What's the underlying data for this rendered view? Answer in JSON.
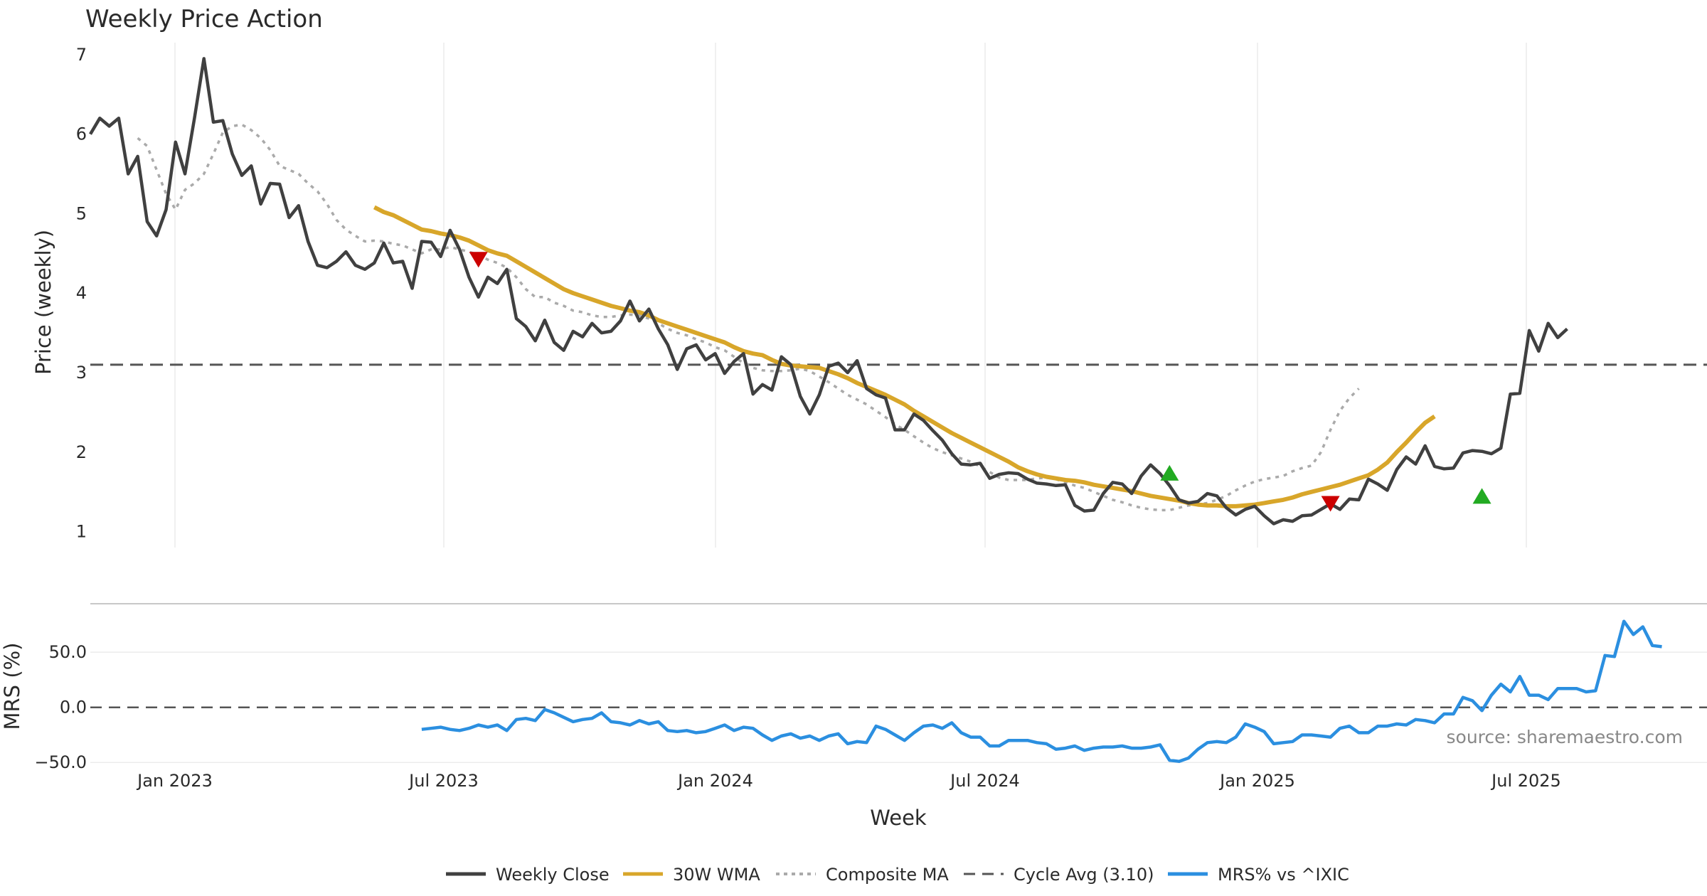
{
  "chart_data": {
    "type": "line",
    "title": "Weekly Price Action",
    "xlabel": "Week",
    "ylabel": "Price (weekly)",
    "ylim": [
      0.8,
      7.15
    ],
    "yticks": [
      "1",
      "2",
      "3",
      "4",
      "5",
      "6",
      "7"
    ],
    "xticks": [
      "Jan 2023",
      "Jul 2023",
      "Jan 2024",
      "Jul 2024",
      "Jan 2025",
      "Jul 2025"
    ],
    "cycle_avg": 3.1,
    "series": [
      {
        "name": "Weekly Close",
        "color": "#404040",
        "values": [
          6.0,
          6.2,
          6.1,
          6.2,
          5.5,
          5.72,
          4.9,
          4.72,
          5.05,
          5.9,
          5.5,
          6.2,
          6.95,
          6.15,
          6.17,
          5.75,
          5.48,
          5.6,
          5.12,
          5.38,
          5.37,
          4.95,
          5.1,
          4.65,
          4.35,
          4.32,
          4.4,
          4.52,
          4.35,
          4.3,
          4.38,
          4.63,
          4.38,
          4.4,
          4.06,
          4.65,
          4.64,
          4.46,
          4.79,
          4.55,
          4.2,
          3.95,
          4.2,
          4.12,
          4.3,
          3.68,
          3.58,
          3.4,
          3.66,
          3.38,
          3.28,
          3.52,
          3.45,
          3.62,
          3.5,
          3.52,
          3.65,
          3.9,
          3.65,
          3.8,
          3.55,
          3.35,
          3.04,
          3.3,
          3.35,
          3.16,
          3.24,
          2.99,
          3.14,
          3.24,
          2.73,
          2.85,
          2.78,
          3.2,
          3.1,
          2.7,
          2.48,
          2.72,
          3.08,
          3.12,
          3.0,
          3.15,
          2.8,
          2.72,
          2.68,
          2.28,
          2.28,
          2.48,
          2.4,
          2.27,
          2.15,
          1.98,
          1.85,
          1.84,
          1.86,
          1.67,
          1.72,
          1.74,
          1.73,
          1.66,
          1.61,
          1.6,
          1.58,
          1.59,
          1.33,
          1.26,
          1.27,
          1.48,
          1.62,
          1.6,
          1.48,
          1.7,
          1.84,
          1.73,
          1.58,
          1.4,
          1.36,
          1.38,
          1.48,
          1.45,
          1.3,
          1.21,
          1.28,
          1.32,
          1.2,
          1.1,
          1.15,
          1.13,
          1.2,
          1.21,
          1.28,
          1.35,
          1.28,
          1.41,
          1.4,
          1.66,
          1.6,
          1.52,
          1.78,
          1.94,
          1.85,
          2.08,
          1.82,
          1.79,
          1.8,
          1.99,
          2.02,
          2.01,
          1.98,
          2.05,
          2.73,
          2.74,
          3.53,
          3.27,
          3.62,
          3.44,
          3.55
        ]
      },
      {
        "name": "30W WMA",
        "color": "#d8a62a",
        "start_index": 30,
        "values": [
          5.08,
          5.02,
          4.98,
          4.92,
          4.86,
          4.8,
          4.78,
          4.75,
          4.73,
          4.7,
          4.66,
          4.6,
          4.54,
          4.5,
          4.47,
          4.4,
          4.33,
          4.26,
          4.19,
          4.12,
          4.05,
          4.0,
          3.96,
          3.92,
          3.88,
          3.84,
          3.81,
          3.78,
          3.76,
          3.72,
          3.66,
          3.62,
          3.58,
          3.54,
          3.5,
          3.46,
          3.42,
          3.38,
          3.32,
          3.27,
          3.24,
          3.22,
          3.16,
          3.11,
          3.09,
          3.08,
          3.07,
          3.06,
          3.02,
          2.98,
          2.93,
          2.87,
          2.82,
          2.77,
          2.72,
          2.66,
          2.6,
          2.52,
          2.45,
          2.38,
          2.31,
          2.24,
          2.18,
          2.12,
          2.06,
          2.0,
          1.94,
          1.88,
          1.81,
          1.76,
          1.72,
          1.69,
          1.67,
          1.65,
          1.64,
          1.62,
          1.59,
          1.57,
          1.55,
          1.53,
          1.51,
          1.48,
          1.45,
          1.43,
          1.41,
          1.39,
          1.36,
          1.34,
          1.33,
          1.33,
          1.32,
          1.32,
          1.33,
          1.34,
          1.36,
          1.38,
          1.4,
          1.43,
          1.47,
          1.5,
          1.53,
          1.56,
          1.59,
          1.63,
          1.67,
          1.71,
          1.78,
          1.87,
          2.0,
          2.12,
          2.25,
          2.37,
          2.45
        ]
      },
      {
        "name": "Composite MA",
        "color": "#aaaaaa",
        "start_index": 5,
        "values": [
          5.95,
          5.85,
          5.55,
          5.25,
          5.05,
          5.3,
          5.38,
          5.5,
          5.75,
          6.02,
          6.1,
          6.12,
          6.05,
          5.95,
          5.8,
          5.6,
          5.55,
          5.5,
          5.38,
          5.28,
          5.12,
          4.92,
          4.8,
          4.72,
          4.65,
          4.66,
          4.65,
          4.62,
          4.6,
          4.55,
          4.5,
          4.55,
          4.55,
          4.58,
          4.55,
          4.52,
          4.48,
          4.42,
          4.38,
          4.32,
          4.2,
          4.05,
          3.95,
          3.95,
          3.88,
          3.84,
          3.78,
          3.76,
          3.72,
          3.7,
          3.7,
          3.72,
          3.73,
          3.72,
          3.68,
          3.62,
          3.55,
          3.5,
          3.47,
          3.42,
          3.38,
          3.32,
          3.28,
          3.2,
          3.12,
          3.06,
          3.03,
          3.02,
          3.02,
          3.03,
          3.05,
          3.02,
          2.95,
          2.88,
          2.8,
          2.72,
          2.66,
          2.6,
          2.52,
          2.44,
          2.35,
          2.28,
          2.2,
          2.12,
          2.05,
          2.0,
          1.96,
          1.92,
          1.88,
          1.82,
          1.75,
          1.68,
          1.65,
          1.65,
          1.65,
          1.67,
          1.68,
          1.66,
          1.62,
          1.58,
          1.55,
          1.5,
          1.45,
          1.4,
          1.37,
          1.33,
          1.3,
          1.28,
          1.27,
          1.27,
          1.3,
          1.33,
          1.34,
          1.36,
          1.4,
          1.45,
          1.52,
          1.58,
          1.63,
          1.66,
          1.68,
          1.7,
          1.76,
          1.8,
          1.83,
          2.0,
          2.28,
          2.52,
          2.68,
          2.8
        ]
      }
    ],
    "markers": [
      {
        "type": "sell",
        "index": 41,
        "value": 4.42,
        "color": "#cc0000"
      },
      {
        "type": "buy",
        "index": 114,
        "value": 1.74,
        "color": "#22aa22"
      },
      {
        "type": "sell",
        "index": 131,
        "value": 1.35,
        "color": "#cc0000"
      },
      {
        "type": "buy",
        "index": 147,
        "value": 1.45,
        "color": "#22aa22"
      }
    ],
    "lower": {
      "ylabel": "MRS (%)",
      "ylim": [
        -55,
        92
      ],
      "yticks": [
        "50.0",
        "0.0",
        "−50.0"
      ],
      "series": {
        "name": "MRS% vs ^IXIC",
        "color": "#2b8fe0",
        "start_index": 35,
        "values": [
          -20,
          -19,
          -18,
          -20,
          -21,
          -19,
          -16,
          -18,
          -16,
          -21,
          -11,
          -10,
          -12,
          -2,
          -5,
          -9,
          -13,
          -11,
          -10,
          -5,
          -13,
          -14,
          -16,
          -12,
          -15,
          -13,
          -21,
          -22,
          -21,
          -23,
          -22,
          -19,
          -16,
          -21,
          -18,
          -19,
          -25,
          -30,
          -26,
          -24,
          -28,
          -26,
          -30,
          -26,
          -24,
          -33,
          -31,
          -32,
          -17,
          -20,
          -25,
          -30,
          -23,
          -17,
          -16,
          -19,
          -14,
          -23,
          -27,
          -27,
          -35,
          -35,
          -30,
          -30,
          -30,
          -32,
          -33,
          -38,
          -37,
          -35,
          -39,
          -37,
          -36,
          -36,
          -35,
          -37,
          -37,
          -36,
          -34,
          -48,
          -49,
          -46,
          -38,
          -32,
          -31,
          -32,
          -27,
          -15,
          -18,
          -22,
          -33,
          -32,
          -31,
          -25,
          -25,
          -26,
          -27,
          -19,
          -17,
          -23,
          -23,
          -17,
          -17,
          -15,
          -16,
          -11,
          -12,
          -14,
          -6,
          -6,
          9,
          6,
          -3,
          11,
          21,
          14,
          28,
          11,
          11,
          7,
          17,
          17,
          17,
          14,
          15,
          47,
          46,
          78,
          66,
          73,
          56,
          55
        ]
      }
    },
    "legend": [
      {
        "label": "Weekly Close",
        "color": "#404040",
        "style": "solid"
      },
      {
        "label": "30W WMA",
        "color": "#d8a62a",
        "style": "solid"
      },
      {
        "label": "Composite MA",
        "color": "#aaaaaa",
        "style": "dotted"
      },
      {
        "label": "Cycle Avg (3.10)",
        "color": "#555555",
        "style": "dashed"
      },
      {
        "label": "MRS% vs ^IXIC",
        "color": "#2b8fe0",
        "style": "solid"
      }
    ],
    "source": "source: sharemaestro.com"
  }
}
